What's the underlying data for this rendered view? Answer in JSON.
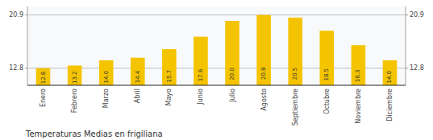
{
  "chart_data": {
    "type": "bar",
    "title": "Temperaturas Medias en frigiliana",
    "categories": [
      "Enero",
      "Febrero",
      "Marzo",
      "Abril",
      "Mayo",
      "Junio",
      "Julio",
      "Agosto",
      "Septiembre",
      "Octubre",
      "Noviembre",
      "Diciembre"
    ],
    "values": [
      12.8,
      13.2,
      14.0,
      14.4,
      15.7,
      17.6,
      20.0,
      20.9,
      20.5,
      18.5,
      16.3,
      14.0
    ],
    "value_labels": [
      "12.8",
      "13.2",
      "14.0",
      "14.4",
      "15.7",
      "17.6",
      "20.0",
      "20.9",
      "20.5",
      "18.5",
      "16.3",
      "14.0"
    ],
    "color": "#F5C400",
    "ylim": [
      10.2,
      22.2
    ],
    "yticks": [
      12.8,
      20.9
    ],
    "y2lim": [
      10.2,
      22.2
    ],
    "y2ticks": [
      12.8,
      20.9
    ],
    "grid": true,
    "data_labels": true
  }
}
